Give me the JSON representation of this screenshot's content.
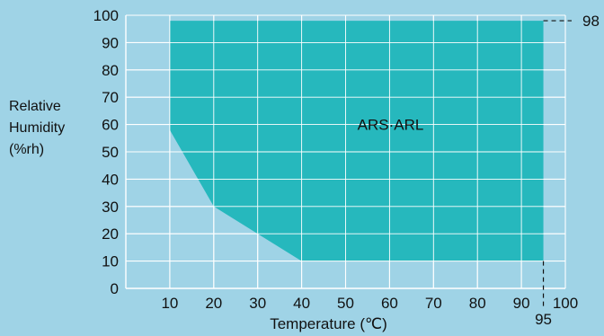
{
  "chart_data": {
    "type": "area",
    "xlabel": "Temperature (℃)",
    "ylabel_lines": [
      "Relative",
      "Humidity",
      "(%rh)"
    ],
    "xlim": [
      0,
      100
    ],
    "ylim": [
      0,
      100
    ],
    "x_ticks": [
      10,
      20,
      30,
      40,
      50,
      60,
      70,
      80,
      90,
      100
    ],
    "y_ticks": [
      0,
      10,
      20,
      30,
      40,
      50,
      60,
      70,
      80,
      90,
      100
    ],
    "grid": true,
    "series": [
      {
        "name": "ARS·ARL",
        "x": [
          10,
          10,
          20,
          30,
          40,
          95,
          95
        ],
        "y": [
          98,
          58,
          30,
          20,
          10,
          10,
          98
        ]
      }
    ],
    "annotations": {
      "top_limit_label": "98",
      "right_limit_label": "95"
    },
    "colors": {
      "background": "#9fd3e6",
      "region_fill": "#26b8bd",
      "grid": "#ffffff"
    }
  }
}
